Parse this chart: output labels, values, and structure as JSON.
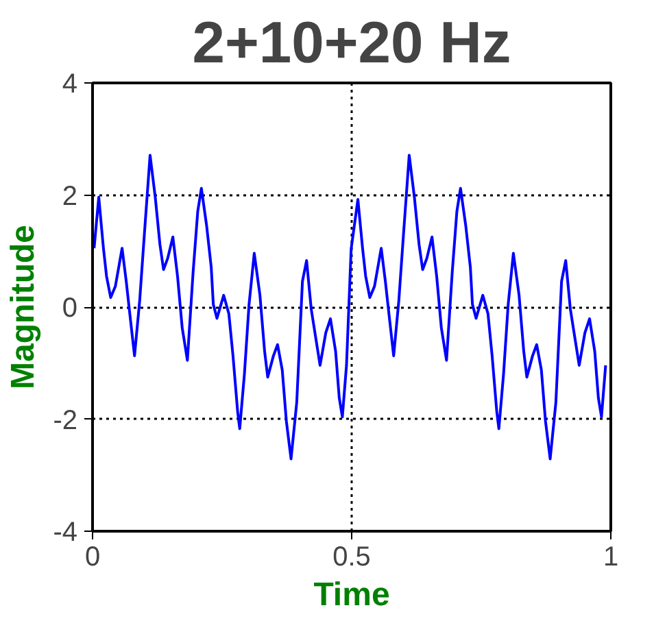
{
  "chart_data": {
    "type": "line",
    "title": "2+10+20 Hz",
    "xlabel": "Time",
    "ylabel": "Magnitude",
    "x": [
      0.003,
      0.012,
      0.021,
      0.027,
      0.035,
      0.044,
      0.057,
      0.065,
      0.072,
      0.081,
      0.091,
      0.1,
      0.111,
      0.121,
      0.13,
      0.137,
      0.145,
      0.155,
      0.164,
      0.173,
      0.183,
      0.194,
      0.203,
      0.21,
      0.22,
      0.229,
      0.233,
      0.24,
      0.253,
      0.263,
      0.271,
      0.28,
      0.284,
      0.293,
      0.302,
      0.312,
      0.323,
      0.332,
      0.338,
      0.349,
      0.357,
      0.366,
      0.374,
      0.383,
      0.394,
      0.405,
      0.413,
      0.422,
      0.439,
      0.45,
      0.459,
      0.469,
      0.476,
      0.482,
      0.49,
      0.499,
      0.512,
      0.521,
      0.527,
      0.535,
      0.544,
      0.557,
      0.565,
      0.572,
      0.581,
      0.591,
      0.6,
      0.611,
      0.621,
      0.63,
      0.637,
      0.645,
      0.655,
      0.664,
      0.673,
      0.683,
      0.694,
      0.703,
      0.71,
      0.72,
      0.729,
      0.733,
      0.74,
      0.753,
      0.763,
      0.771,
      0.78,
      0.784,
      0.793,
      0.802,
      0.812,
      0.823,
      0.832,
      0.838,
      0.849,
      0.857,
      0.866,
      0.874,
      0.883,
      0.894,
      0.905,
      0.913,
      0.922,
      0.939,
      0.95,
      0.959,
      0.969,
      0.976,
      0.982,
      0.99
    ],
    "series": [
      {
        "color": "#0000ff",
        "values": [
          1.05,
          1.96,
          1.05,
          0.55,
          0.17,
          0.37,
          1.05,
          0.46,
          -0.13,
          -0.87,
          0.12,
          1.3,
          2.71,
          1.96,
          1.12,
          0.67,
          0.87,
          1.25,
          0.55,
          -0.37,
          -0.95,
          0.62,
          1.71,
          2.12,
          1.46,
          0.71,
          0.05,
          -0.2,
          0.21,
          -0.12,
          -0.87,
          -1.87,
          -2.17,
          -1.2,
          0.05,
          0.96,
          0.21,
          -0.79,
          -1.25,
          -0.87,
          -0.67,
          -1.12,
          -2.04,
          -2.71,
          -1.7,
          0.46,
          0.83,
          -0.04,
          -1.04,
          -0.46,
          -0.21,
          -0.79,
          -1.62,
          -1.96,
          -1.04,
          1.04,
          1.92,
          1.05,
          0.55,
          0.17,
          0.37,
          1.05,
          0.46,
          -0.13,
          -0.87,
          0.12,
          1.3,
          2.71,
          1.96,
          1.12,
          0.67,
          0.87,
          1.25,
          0.55,
          -0.37,
          -0.95,
          0.62,
          1.71,
          2.12,
          1.46,
          0.71,
          0.05,
          -0.2,
          0.21,
          -0.12,
          -0.87,
          -1.87,
          -2.17,
          -1.2,
          0.05,
          0.96,
          0.21,
          -0.79,
          -1.25,
          -0.87,
          -0.67,
          -1.12,
          -2.04,
          -2.71,
          -1.7,
          0.46,
          0.83,
          -0.04,
          -1.04,
          -0.46,
          -0.21,
          -0.79,
          -1.62,
          -1.96,
          -1.04
        ]
      }
    ],
    "xlim": [
      0,
      1
    ],
    "ylim": [
      -4,
      4
    ],
    "xticks": [
      0,
      0.5,
      1
    ],
    "yticks": [
      -4,
      -2,
      0,
      2,
      4
    ],
    "grid": true,
    "line_style": "solid"
  }
}
